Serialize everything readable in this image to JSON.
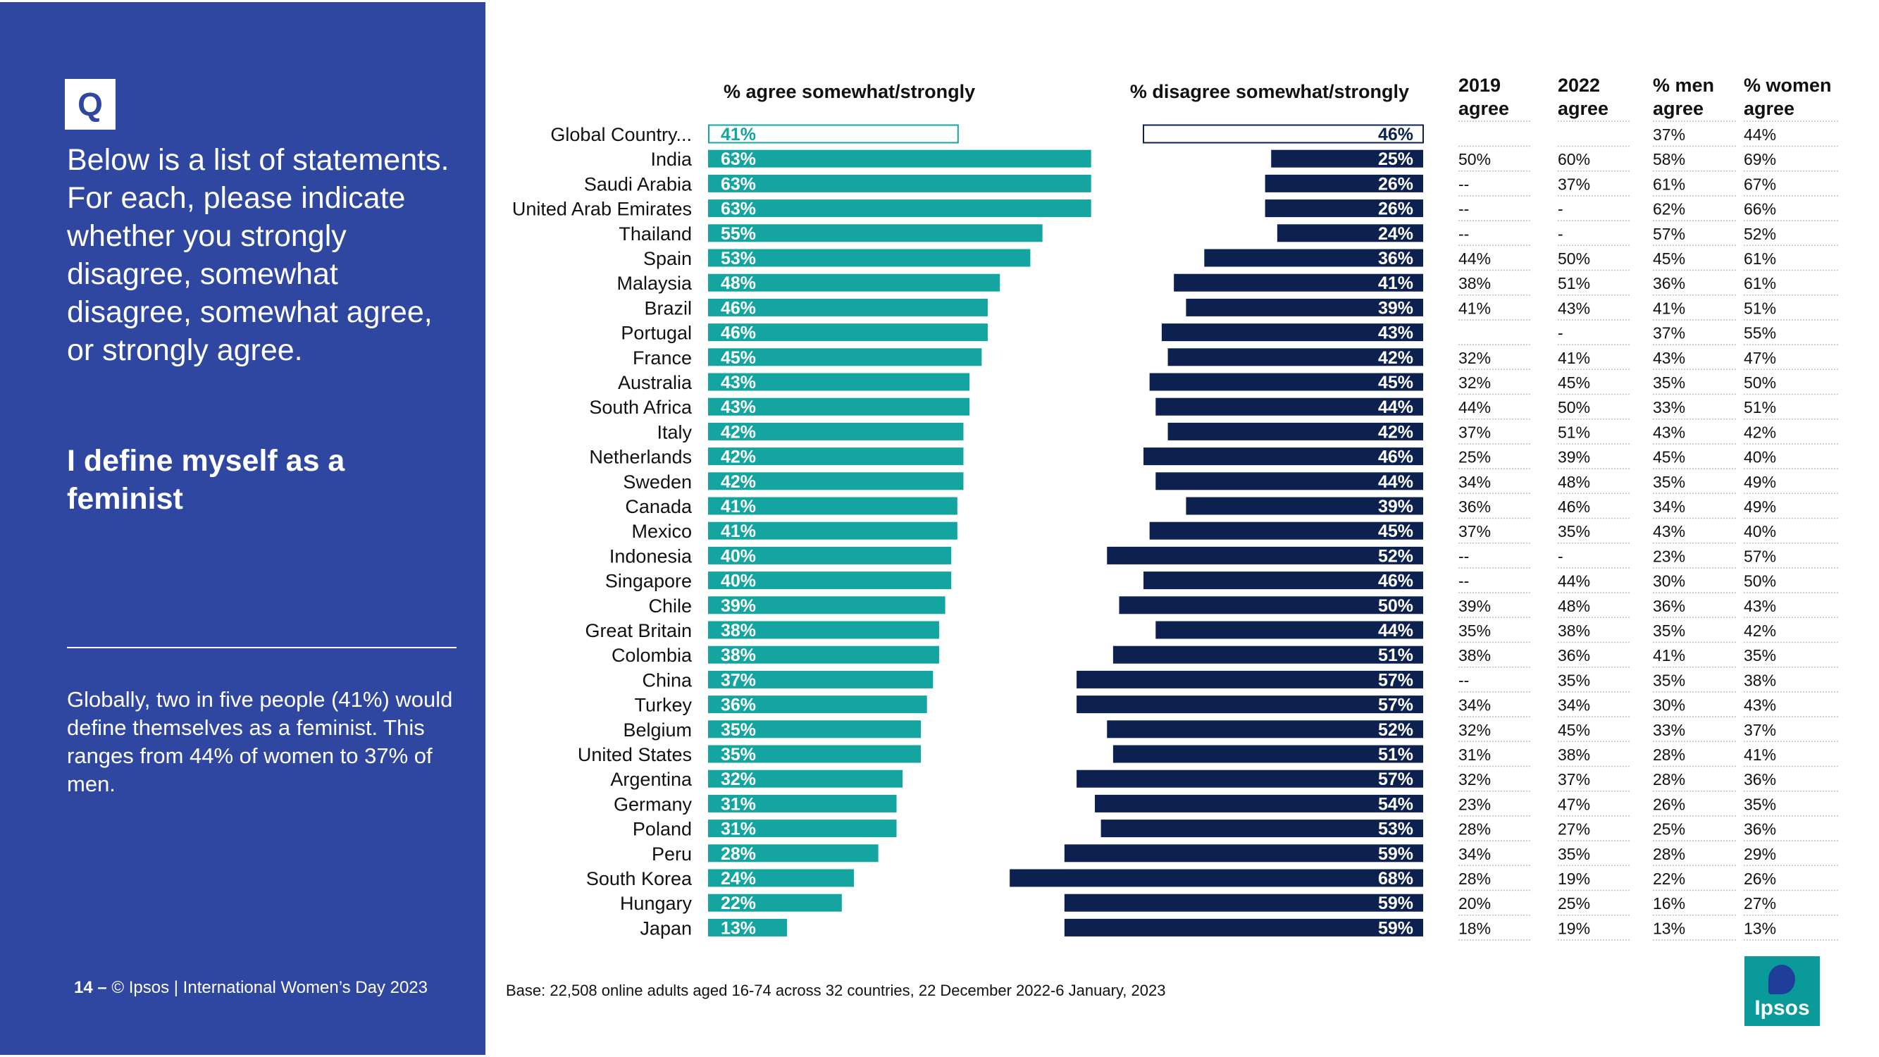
{
  "left_panel": {
    "badge": "Q",
    "question": "Below is a list of statements. For each, please indicate whether you strongly disagree, somewhat disagree, somewhat agree, or strongly agree.",
    "statement": "I define myself as a feminist",
    "summary": "Globally, two in five people (41%) would define themselves as a feminist. This ranges from 44% of women to 37% of men.",
    "footer_page": "14 –",
    "footer_text": "© Ipsos | International Women’s Day 2023"
  },
  "base_note": "Base: 22,508 online adults aged 16-74 across 32 countries, 22 December 2022-6 January, 2023",
  "logo_text": "Ipsos",
  "colors": {
    "panel": "#2f47a0",
    "agree": "#14a5a0",
    "disagree": "#0d2150"
  },
  "chart_data": {
    "type": "bar",
    "layout": "diverging-horizontal-with-table",
    "series_titles": {
      "agree": "% agree somewhat/strongly",
      "disagree": "% disagree somewhat/strongly"
    },
    "table_columns": [
      {
        "key": "y2019",
        "title_line1": "2019",
        "title_line2": "agree"
      },
      {
        "key": "y2022",
        "title_line1": "2022",
        "title_line2": "agree"
      },
      {
        "key": "men",
        "title_line1": "% men",
        "title_line2": "agree"
      },
      {
        "key": "women",
        "title_line1": "% women",
        "title_line2": "agree"
      }
    ],
    "value_range": [
      0,
      100
    ],
    "rows": [
      {
        "country": "Global Country...",
        "agree": 41,
        "disagree": 46,
        "y2019": "",
        "y2022": "",
        "men": "37%",
        "women": "44%",
        "outline": true
      },
      {
        "country": "India",
        "agree": 63,
        "disagree": 25,
        "y2019": "50%",
        "y2022": "60%",
        "men": "58%",
        "women": "69%"
      },
      {
        "country": "Saudi Arabia",
        "agree": 63,
        "disagree": 26,
        "y2019": "--",
        "y2022": "37%",
        "men": "61%",
        "women": "67%"
      },
      {
        "country": "United Arab Emirates",
        "agree": 63,
        "disagree": 26,
        "y2019": "--",
        "y2022": "-",
        "men": "62%",
        "women": "66%"
      },
      {
        "country": "Thailand",
        "agree": 55,
        "disagree": 24,
        "y2019": "--",
        "y2022": "-",
        "men": "57%",
        "women": "52%"
      },
      {
        "country": "Spain",
        "agree": 53,
        "disagree": 36,
        "y2019": "44%",
        "y2022": "50%",
        "men": "45%",
        "women": "61%"
      },
      {
        "country": "Malaysia",
        "agree": 48,
        "disagree": 41,
        "y2019": "38%",
        "y2022": "51%",
        "men": "36%",
        "women": "61%"
      },
      {
        "country": "Brazil",
        "agree": 46,
        "disagree": 39,
        "y2019": "41%",
        "y2022": "43%",
        "men": "41%",
        "women": "51%"
      },
      {
        "country": "Portugal",
        "agree": 46,
        "disagree": 43,
        "y2019": "",
        "y2022": "-",
        "men": "37%",
        "women": "55%"
      },
      {
        "country": "France",
        "agree": 45,
        "disagree": 42,
        "y2019": "32%",
        "y2022": "41%",
        "men": "43%",
        "women": "47%"
      },
      {
        "country": "Australia",
        "agree": 43,
        "disagree": 45,
        "y2019": "32%",
        "y2022": "45%",
        "men": "35%",
        "women": "50%"
      },
      {
        "country": "South Africa",
        "agree": 43,
        "disagree": 44,
        "y2019": "44%",
        "y2022": "50%",
        "men": "33%",
        "women": "51%"
      },
      {
        "country": "Italy",
        "agree": 42,
        "disagree": 42,
        "y2019": "37%",
        "y2022": "51%",
        "men": "43%",
        "women": "42%"
      },
      {
        "country": "Netherlands",
        "agree": 42,
        "disagree": 46,
        "y2019": "25%",
        "y2022": "39%",
        "men": "45%",
        "women": "40%"
      },
      {
        "country": "Sweden",
        "agree": 42,
        "disagree": 44,
        "y2019": "34%",
        "y2022": "48%",
        "men": "35%",
        "women": "49%"
      },
      {
        "country": "Canada",
        "agree": 41,
        "disagree": 39,
        "y2019": "36%",
        "y2022": "46%",
        "men": "34%",
        "women": "49%"
      },
      {
        "country": "Mexico",
        "agree": 41,
        "disagree": 45,
        "y2019": "37%",
        "y2022": "35%",
        "men": "43%",
        "women": "40%"
      },
      {
        "country": "Indonesia",
        "agree": 40,
        "disagree": 52,
        "y2019": "--",
        "y2022": "-",
        "men": "23%",
        "women": "57%"
      },
      {
        "country": "Singapore",
        "agree": 40,
        "disagree": 46,
        "y2019": "--",
        "y2022": "44%",
        "men": "30%",
        "women": "50%"
      },
      {
        "country": "Chile",
        "agree": 39,
        "disagree": 50,
        "y2019": "39%",
        "y2022": "48%",
        "men": "36%",
        "women": "43%"
      },
      {
        "country": "Great Britain",
        "agree": 38,
        "disagree": 44,
        "y2019": "35%",
        "y2022": "38%",
        "men": "35%",
        "women": "42%"
      },
      {
        "country": "Colombia",
        "agree": 38,
        "disagree": 51,
        "y2019": "38%",
        "y2022": "36%",
        "men": "41%",
        "women": "35%"
      },
      {
        "country": "China",
        "agree": 37,
        "disagree": 57,
        "y2019": "--",
        "y2022": "35%",
        "men": "35%",
        "women": "38%"
      },
      {
        "country": "Turkey",
        "agree": 36,
        "disagree": 57,
        "y2019": "34%",
        "y2022": "34%",
        "men": "30%",
        "women": "43%"
      },
      {
        "country": "Belgium",
        "agree": 35,
        "disagree": 52,
        "y2019": "32%",
        "y2022": "45%",
        "men": "33%",
        "women": "37%"
      },
      {
        "country": "United States",
        "agree": 35,
        "disagree": 51,
        "y2019": "31%",
        "y2022": "38%",
        "men": "28%",
        "women": "41%"
      },
      {
        "country": "Argentina",
        "agree": 32,
        "disagree": 57,
        "y2019": "32%",
        "y2022": "37%",
        "men": "28%",
        "women": "36%"
      },
      {
        "country": "Germany",
        "agree": 31,
        "disagree": 54,
        "y2019": "23%",
        "y2022": "47%",
        "men": "26%",
        "women": "35%"
      },
      {
        "country": "Poland",
        "agree": 31,
        "disagree": 53,
        "y2019": "28%",
        "y2022": "27%",
        "men": "25%",
        "women": "36%"
      },
      {
        "country": "Peru",
        "agree": 28,
        "disagree": 59,
        "y2019": "34%",
        "y2022": "35%",
        "men": "28%",
        "women": "29%"
      },
      {
        "country": "South Korea",
        "agree": 24,
        "disagree": 68,
        "y2019": "28%",
        "y2022": "19%",
        "men": "22%",
        "women": "26%"
      },
      {
        "country": "Hungary",
        "agree": 22,
        "disagree": 59,
        "y2019": "20%",
        "y2022": "25%",
        "men": "16%",
        "women": "27%"
      },
      {
        "country": "Japan",
        "agree": 13,
        "disagree": 59,
        "y2019": "18%",
        "y2022": "19%",
        "men": "13%",
        "women": "13%"
      }
    ]
  }
}
